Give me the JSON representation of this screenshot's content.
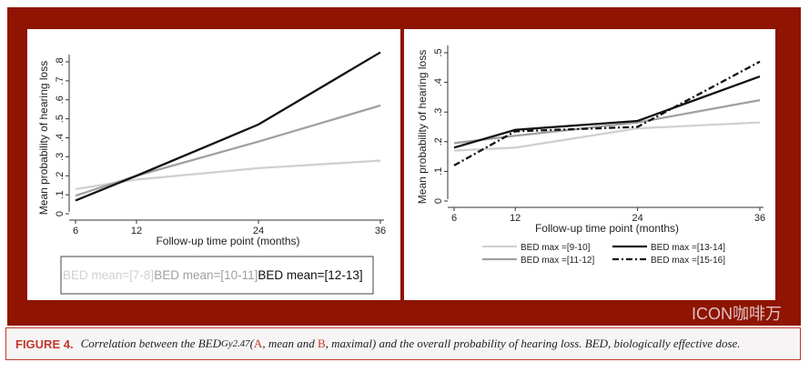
{
  "caption": {
    "label": "FIGURE 4.",
    "pre": "Correlation between the BED",
    "sub": "Gy2.47",
    "open": " (",
    "a": "A",
    "mid": ", mean and ",
    "b": "B",
    "post": ", maximal) and the overall probability of hearing loss. BED, biologically effective dose."
  },
  "watermark": "ICON咖啡万",
  "chart_data": [
    {
      "type": "line",
      "panel": "A",
      "xlabel": "Follow-up time point (months)",
      "ylabel": "Mean probability of hearing loss",
      "x": [
        6,
        12,
        24,
        36
      ],
      "xticks": [
        "6",
        "12",
        "24",
        "36"
      ],
      "yticks": [
        "0",
        ".1",
        ".2",
        ".3",
        ".4",
        ".5",
        ".6",
        ".7",
        ".8"
      ],
      "ylim": [
        0,
        0.8
      ],
      "legend": "bottom-box",
      "series": [
        {
          "name": "BED mean=[7-8]",
          "values": [
            0.13,
            0.18,
            0.24,
            0.28
          ],
          "color": "#d0d0d0",
          "dash": ""
        },
        {
          "name": "BED mean=[10-11]",
          "values": [
            0.095,
            0.2,
            0.38,
            0.57
          ],
          "color": "#a0a0a0",
          "dash": ""
        },
        {
          "name": "BED mean=[12-13]",
          "values": [
            0.07,
            0.2,
            0.47,
            0.85
          ],
          "color": "#111111",
          "dash": ""
        }
      ]
    },
    {
      "type": "line",
      "panel": "B",
      "xlabel": "Follow-up time point (months)",
      "ylabel": "Mean probability of hearing loss",
      "x": [
        6,
        12,
        24,
        36
      ],
      "xticks": [
        "6",
        "12",
        "24",
        "36"
      ],
      "yticks": [
        "0",
        ".1",
        ".2",
        ".3",
        ".4",
        ".5"
      ],
      "ylim": [
        0,
        0.5
      ],
      "legend": "bottom",
      "series": [
        {
          "name": "BED max =[9-10]",
          "values": [
            0.17,
            0.18,
            0.245,
            0.265
          ],
          "color": "#d0d0d0",
          "dash": ""
        },
        {
          "name": "BED max =[11-12]",
          "values": [
            0.195,
            0.22,
            0.265,
            0.34
          ],
          "color": "#a0a0a0",
          "dash": ""
        },
        {
          "name": "BED max =[13-14]",
          "values": [
            0.18,
            0.24,
            0.27,
            0.42
          ],
          "color": "#111111",
          "dash": ""
        },
        {
          "name": "BED max =[15-16]",
          "values": [
            0.12,
            0.235,
            0.25,
            0.47
          ],
          "color": "#111111",
          "dash": "7,3,2,3"
        }
      ]
    }
  ]
}
